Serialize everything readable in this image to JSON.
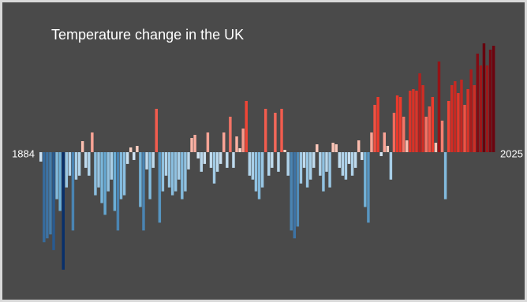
{
  "chart_data": {
    "type": "bar",
    "title": "Temperature change in the UK",
    "x": [
      1884,
      1885,
      1886,
      1887,
      1888,
      1889,
      1890,
      1891,
      1892,
      1893,
      1894,
      1895,
      1896,
      1897,
      1898,
      1899,
      1900,
      1901,
      1902,
      1903,
      1904,
      1905,
      1906,
      1907,
      1908,
      1909,
      1910,
      1911,
      1912,
      1913,
      1914,
      1915,
      1916,
      1917,
      1918,
      1919,
      1920,
      1921,
      1922,
      1923,
      1924,
      1925,
      1926,
      1927,
      1928,
      1929,
      1930,
      1931,
      1932,
      1933,
      1934,
      1935,
      1936,
      1937,
      1938,
      1939,
      1940,
      1941,
      1942,
      1943,
      1944,
      1945,
      1946,
      1947,
      1948,
      1949,
      1950,
      1951,
      1952,
      1953,
      1954,
      1955,
      1956,
      1957,
      1958,
      1959,
      1960,
      1961,
      1962,
      1963,
      1964,
      1965,
      1966,
      1967,
      1968,
      1969,
      1970,
      1971,
      1972,
      1973,
      1974,
      1975,
      1976,
      1977,
      1978,
      1979,
      1980,
      1981,
      1982,
      1983,
      1984,
      1985,
      1986,
      1987,
      1988,
      1989,
      1990,
      1991,
      1992,
      1993,
      1994,
      1995,
      1996,
      1997,
      1998,
      1999,
      2000,
      2001,
      2002,
      2003,
      2004,
      2005,
      2006,
      2007,
      2008,
      2009,
      2010,
      2011,
      2012,
      2013,
      2014,
      2015,
      2016,
      2017,
      2018,
      2019,
      2020,
      2021,
      2022,
      2023,
      2024,
      2025
    ],
    "values": [
      -0.12,
      -1.15,
      -1.1,
      -1.05,
      -1.25,
      -0.6,
      -0.75,
      -1.5,
      -0.45,
      -0.3,
      -1.0,
      -0.35,
      -0.3,
      0.14,
      -0.2,
      -0.3,
      0.25,
      -0.55,
      -0.45,
      -0.65,
      -0.8,
      -0.5,
      -0.35,
      -0.75,
      -1.0,
      -0.6,
      -0.55,
      -0.15,
      0.06,
      -0.1,
      0.08,
      -0.7,
      -1.0,
      -0.22,
      -0.6,
      -0.2,
      0.55,
      -0.9,
      -0.5,
      -0.3,
      -0.45,
      -0.55,
      -0.5,
      -0.35,
      -0.6,
      -0.5,
      -0.22,
      0.18,
      0.22,
      -0.08,
      -0.25,
      -0.15,
      0.25,
      -0.2,
      -0.4,
      -0.25,
      -0.15,
      0.25,
      -0.2,
      0.45,
      -0.2,
      0.2,
      0.05,
      0.3,
      0.65,
      -0.3,
      -0.35,
      -0.5,
      -0.6,
      -0.45,
      0.55,
      -0.3,
      -0.2,
      0.5,
      -0.25,
      0.55,
      0.03,
      -0.3,
      -1.0,
      -1.1,
      -0.95,
      -0.4,
      -0.2,
      -0.45,
      -0.35,
      -0.2,
      0.1,
      -0.3,
      -0.5,
      -0.25,
      -0.45,
      0.12,
      0.1,
      -0.2,
      -0.3,
      -0.35,
      -0.15,
      -0.3,
      -0.2,
      0.15,
      -0.1,
      -0.7,
      -0.9,
      0.25,
      0.6,
      0.7,
      -0.05,
      0.25,
      0.08,
      -0.35,
      0.5,
      0.72,
      0.7,
      0.45,
      0.15,
      0.78,
      0.8,
      0.78,
      1.0,
      0.85,
      0.45,
      0.58,
      0.7,
      0.12,
      1.15,
      0.4,
      -0.6,
      0.65,
      0.85,
      0.9,
      0.75,
      0.92,
      0.6,
      0.8,
      1.05,
      0.85,
      1.25,
      1.1,
      1.38,
      1.1,
      1.3,
      1.35
    ]
  }
}
